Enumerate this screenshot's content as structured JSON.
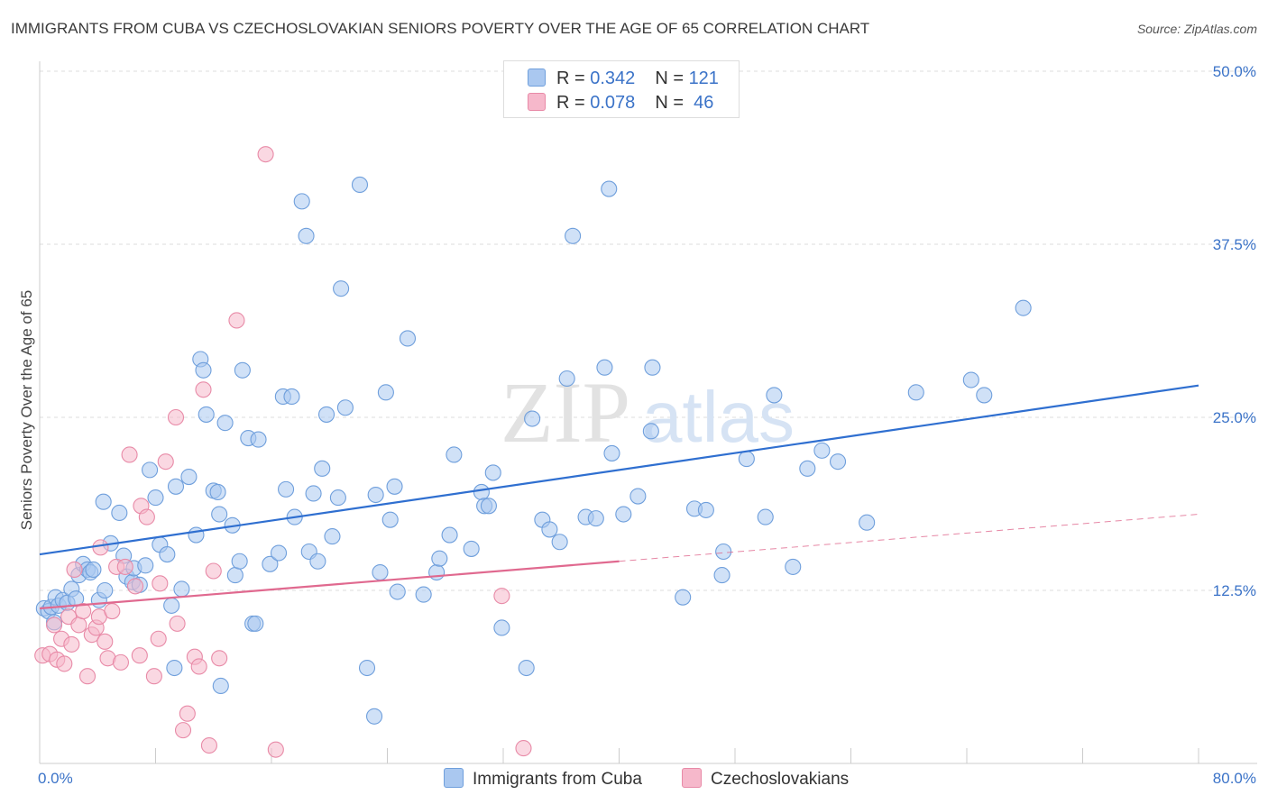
{
  "title": "IMMIGRANTS FROM CUBA VS CZECHOSLOVAKIAN SENIORS POVERTY OVER THE AGE OF 65 CORRELATION CHART",
  "source": "Source: ZipAtlas.com",
  "watermark": {
    "zip": "ZIP",
    "atlas": "atlas"
  },
  "colors": {
    "blue_fill": "#aac8f0",
    "blue_stroke": "#6f9fdc",
    "blue_line": "#2f6fd0",
    "pink_fill": "#f6b8cb",
    "pink_stroke": "#e88aa7",
    "pink_line": "#e0698f",
    "axis_text": "#3b73c8",
    "grid": "#dcdcdc"
  },
  "legend": {
    "rows": [
      {
        "r_label": "R = ",
        "r_value": "0.342",
        "n_label": "N = ",
        "n_value": "121"
      },
      {
        "r_label": "R = ",
        "r_value": "0.078",
        "n_label": "N = ",
        "n_value": " 46"
      }
    ]
  },
  "bottom_legend": {
    "series1": "Immigrants from Cuba",
    "series2": "Czechoslovakians"
  },
  "chart_data": {
    "type": "scatter",
    "title": "IMMIGRANTS FROM CUBA VS CZECHOSLOVAKIAN SENIORS POVERTY OVER THE AGE OF 65 CORRELATION CHART",
    "xlabel": "",
    "ylabel": "Seniors Poverty Over the Age of 65",
    "xlim": [
      0,
      80
    ],
    "ylim": [
      0,
      50
    ],
    "x_tick_labels": [
      "0.0%",
      "80.0%"
    ],
    "y_ticks": [
      12.5,
      25.0,
      37.5,
      50.0
    ],
    "y_tick_labels": [
      "12.5%",
      "25.0%",
      "37.5%",
      "50.0%"
    ],
    "series": [
      {
        "name": "Immigrants from Cuba",
        "trend": {
          "x": [
            0,
            80
          ],
          "y": [
            15.1,
            27.3
          ],
          "style": "solid"
        },
        "points": [
          [
            0.3,
            11.2
          ],
          [
            0.6,
            11.0
          ],
          [
            0.8,
            11.3
          ],
          [
            1.0,
            10.2
          ],
          [
            1.1,
            12.0
          ],
          [
            1.3,
            11.4
          ],
          [
            1.6,
            11.8
          ],
          [
            1.9,
            11.6
          ],
          [
            2.2,
            12.6
          ],
          [
            2.5,
            11.9
          ],
          [
            2.7,
            13.6
          ],
          [
            3.0,
            14.4
          ],
          [
            3.3,
            14.0
          ],
          [
            3.5,
            13.8
          ],
          [
            3.7,
            14.0
          ],
          [
            4.1,
            11.8
          ],
          [
            4.4,
            18.9
          ],
          [
            4.5,
            12.5
          ],
          [
            4.9,
            15.9
          ],
          [
            5.5,
            18.1
          ],
          [
            5.8,
            15.0
          ],
          [
            6.0,
            13.5
          ],
          [
            6.4,
            13.1
          ],
          [
            6.5,
            14.1
          ],
          [
            6.9,
            12.9
          ],
          [
            7.3,
            14.3
          ],
          [
            7.6,
            21.2
          ],
          [
            8.0,
            19.2
          ],
          [
            8.3,
            15.8
          ],
          [
            8.8,
            15.1
          ],
          [
            9.1,
            11.4
          ],
          [
            9.3,
            6.9
          ],
          [
            9.4,
            20.0
          ],
          [
            9.8,
            12.6
          ],
          [
            10.3,
            20.7
          ],
          [
            10.8,
            16.5
          ],
          [
            11.1,
            29.2
          ],
          [
            11.3,
            28.4
          ],
          [
            11.5,
            25.2
          ],
          [
            12.0,
            19.7
          ],
          [
            12.3,
            19.6
          ],
          [
            12.4,
            18.0
          ],
          [
            12.5,
            5.6
          ],
          [
            12.8,
            24.6
          ],
          [
            13.3,
            17.2
          ],
          [
            13.5,
            13.6
          ],
          [
            13.8,
            14.6
          ],
          [
            14.0,
            28.4
          ],
          [
            14.4,
            23.5
          ],
          [
            14.7,
            10.1
          ],
          [
            14.9,
            10.1
          ],
          [
            15.1,
            23.4
          ],
          [
            15.9,
            14.4
          ],
          [
            16.5,
            15.2
          ],
          [
            16.8,
            26.5
          ],
          [
            17.0,
            19.8
          ],
          [
            17.4,
            26.5
          ],
          [
            17.6,
            17.8
          ],
          [
            18.1,
            40.6
          ],
          [
            18.4,
            38.1
          ],
          [
            18.6,
            15.3
          ],
          [
            18.9,
            19.5
          ],
          [
            19.2,
            14.6
          ],
          [
            19.5,
            21.3
          ],
          [
            19.8,
            25.2
          ],
          [
            20.2,
            16.4
          ],
          [
            20.6,
            19.2
          ],
          [
            20.8,
            34.3
          ],
          [
            21.1,
            25.7
          ],
          [
            22.1,
            41.8
          ],
          [
            22.6,
            6.9
          ],
          [
            23.1,
            3.4
          ],
          [
            23.2,
            19.4
          ],
          [
            23.5,
            13.8
          ],
          [
            23.9,
            26.8
          ],
          [
            24.2,
            17.6
          ],
          [
            24.5,
            20.0
          ],
          [
            24.7,
            12.4
          ],
          [
            25.4,
            30.7
          ],
          [
            26.5,
            12.2
          ],
          [
            27.4,
            13.8
          ],
          [
            27.6,
            14.8
          ],
          [
            28.3,
            16.5
          ],
          [
            28.6,
            22.3
          ],
          [
            29.8,
            15.5
          ],
          [
            30.5,
            19.6
          ],
          [
            30.7,
            18.6
          ],
          [
            31.0,
            18.6
          ],
          [
            31.3,
            21.0
          ],
          [
            31.9,
            9.8
          ],
          [
            33.6,
            6.9
          ],
          [
            34.0,
            24.9
          ],
          [
            34.7,
            17.6
          ],
          [
            35.2,
            16.9
          ],
          [
            35.9,
            16.0
          ],
          [
            36.4,
            27.8
          ],
          [
            36.8,
            38.1
          ],
          [
            37.7,
            17.8
          ],
          [
            38.4,
            17.7
          ],
          [
            39.0,
            28.6
          ],
          [
            39.3,
            41.5
          ],
          [
            39.5,
            22.4
          ],
          [
            40.3,
            18.0
          ],
          [
            41.3,
            19.3
          ],
          [
            42.2,
            24.0
          ],
          [
            42.3,
            28.6
          ],
          [
            44.4,
            12.0
          ],
          [
            45.2,
            18.4
          ],
          [
            46.0,
            18.3
          ],
          [
            47.1,
            13.6
          ],
          [
            47.2,
            15.3
          ],
          [
            48.8,
            22.0
          ],
          [
            50.1,
            17.8
          ],
          [
            50.7,
            26.6
          ],
          [
            52.0,
            14.2
          ],
          [
            53.0,
            21.3
          ],
          [
            54.0,
            22.6
          ],
          [
            55.1,
            21.8
          ],
          [
            57.1,
            17.4
          ],
          [
            60.5,
            26.8
          ],
          [
            64.3,
            27.7
          ],
          [
            65.2,
            26.6
          ],
          [
            67.9,
            32.9
          ]
        ]
      },
      {
        "name": "Czechoslovakians",
        "trend": {
          "x": [
            0,
            40
          ],
          "y": [
            11.2,
            14.6
          ],
          "style": "solid"
        },
        "trend_extension": {
          "x": [
            40,
            80
          ],
          "y": [
            14.6,
            18.0
          ],
          "style": "dashed"
        },
        "points": [
          [
            0.2,
            7.8
          ],
          [
            0.7,
            7.9
          ],
          [
            1.0,
            10.0
          ],
          [
            1.2,
            7.5
          ],
          [
            1.5,
            9.0
          ],
          [
            1.7,
            7.2
          ],
          [
            2.0,
            10.6
          ],
          [
            2.2,
            8.6
          ],
          [
            2.4,
            14.0
          ],
          [
            2.7,
            10.0
          ],
          [
            3.0,
            11.0
          ],
          [
            3.3,
            6.3
          ],
          [
            3.6,
            9.3
          ],
          [
            3.9,
            9.8
          ],
          [
            4.1,
            10.6
          ],
          [
            4.2,
            15.6
          ],
          [
            4.5,
            8.8
          ],
          [
            4.7,
            7.6
          ],
          [
            5.0,
            11.0
          ],
          [
            5.3,
            14.2
          ],
          [
            5.6,
            7.3
          ],
          [
            5.9,
            14.2
          ],
          [
            6.2,
            22.3
          ],
          [
            6.6,
            12.8
          ],
          [
            6.9,
            7.8
          ],
          [
            7.0,
            18.6
          ],
          [
            7.4,
            17.8
          ],
          [
            7.9,
            6.3
          ],
          [
            8.2,
            9.0
          ],
          [
            8.3,
            13.0
          ],
          [
            8.7,
            21.8
          ],
          [
            9.4,
            25.0
          ],
          [
            9.5,
            10.1
          ],
          [
            9.9,
            2.4
          ],
          [
            10.2,
            3.6
          ],
          [
            10.7,
            7.7
          ],
          [
            11.0,
            7.0
          ],
          [
            11.3,
            27.0
          ],
          [
            11.7,
            1.3
          ],
          [
            12.0,
            13.9
          ],
          [
            12.4,
            7.6
          ],
          [
            13.6,
            32.0
          ],
          [
            15.6,
            44.0
          ],
          [
            16.3,
            1.0
          ],
          [
            31.9,
            12.1
          ],
          [
            33.4,
            1.1
          ]
        ]
      }
    ]
  }
}
